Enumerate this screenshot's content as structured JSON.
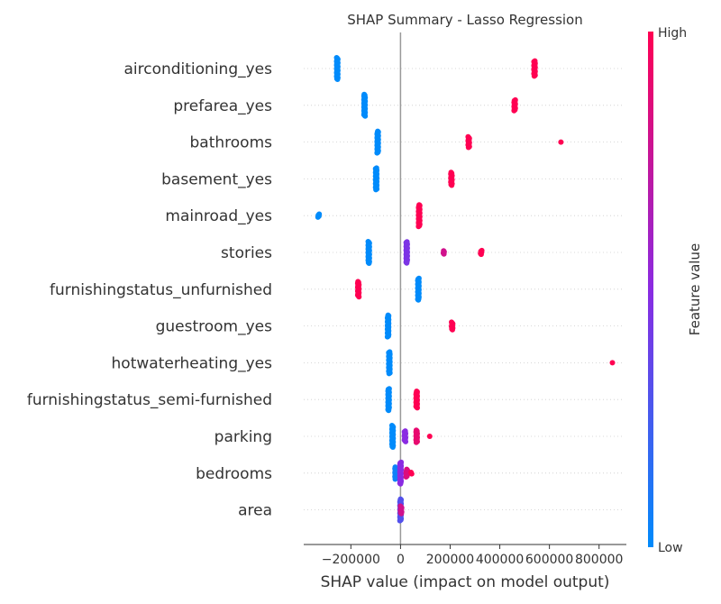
{
  "chart_data": {
    "type": "scatter",
    "title": "SHAP Summary - Lasso Regression",
    "xlabel": "SHAP value (impact on model output)",
    "xlim": [
      -390000,
      910000
    ],
    "xticks": [
      -200000,
      0,
      200000,
      400000,
      600000,
      800000
    ],
    "x_tick_labels": [
      "−200000",
      "0",
      "200000",
      "400000",
      "600000",
      "800000"
    ],
    "colorbar": {
      "label": "Feature value",
      "high": "High",
      "low": "Low"
    },
    "colors": {
      "low": "#008bfb",
      "mid": "#8a2be2",
      "high": "#ff0052",
      "zero_line": "#999999",
      "grid": "#cccccc"
    },
    "features": [
      {
        "name": "airconditioning_yes",
        "points": [
          {
            "x": -255000,
            "color": 0,
            "count": 30
          },
          {
            "x": 540000,
            "color": 1,
            "count": 20
          }
        ]
      },
      {
        "name": "prefarea_yes",
        "points": [
          {
            "x": -145000,
            "color": 0,
            "count": 30
          },
          {
            "x": 460000,
            "color": 1,
            "count": 14
          }
        ]
      },
      {
        "name": "bathrooms",
        "points": [
          {
            "x": -92000,
            "color": 0,
            "count": 30
          },
          {
            "x": 275000,
            "color": 1,
            "count": 14
          },
          {
            "x": 645000,
            "color": 1,
            "count": 1
          }
        ]
      },
      {
        "name": "basement_yes",
        "points": [
          {
            "x": -98000,
            "color": 0,
            "count": 30
          },
          {
            "x": 205000,
            "color": 1,
            "count": 17
          }
        ]
      },
      {
        "name": "mainroad_yes",
        "points": [
          {
            "x": -330000,
            "color": 0,
            "count": 4
          },
          {
            "x": 75000,
            "color": 1,
            "count": 30
          }
        ]
      },
      {
        "name": "stories",
        "points": [
          {
            "x": -128000,
            "color": 0,
            "count": 30
          },
          {
            "x": 25000,
            "color": 0.45,
            "count": 28
          },
          {
            "x": 175000,
            "color": 0.8,
            "count": 4
          },
          {
            "x": 325000,
            "color": 1,
            "count": 5
          }
        ]
      },
      {
        "name": "furnishingstatus_unfurnished",
        "points": [
          {
            "x": -170000,
            "color": 1,
            "count": 20
          },
          {
            "x": 72000,
            "color": 0,
            "count": 30
          }
        ]
      },
      {
        "name": "guestroom_yes",
        "points": [
          {
            "x": -50000,
            "color": 0,
            "count": 30
          },
          {
            "x": 208000,
            "color": 1,
            "count": 10
          }
        ]
      },
      {
        "name": "hotwaterheating_yes",
        "points": [
          {
            "x": -45000,
            "color": 0,
            "count": 30
          },
          {
            "x": 855000,
            "color": 1,
            "count": 1
          }
        ]
      },
      {
        "name": "furnishingstatus_semi-furnished",
        "points": [
          {
            "x": -48000,
            "color": 0,
            "count": 30
          },
          {
            "x": 65000,
            "color": 1,
            "count": 22
          }
        ]
      },
      {
        "name": "parking",
        "points": [
          {
            "x": -32000,
            "color": 0,
            "count": 30
          },
          {
            "x": 18000,
            "color": 0.5,
            "count": 14
          },
          {
            "x": 65000,
            "color": 0.9,
            "count": 16
          },
          {
            "x": 115000,
            "color": 1,
            "count": 1
          }
        ]
      },
      {
        "name": "bedrooms",
        "points": [
          {
            "x": -20000,
            "color": 0.05,
            "count": 16
          },
          {
            "x": 0,
            "color": 0.5,
            "count": 30
          },
          {
            "x": 25000,
            "color": 0.85,
            "count": 10
          },
          {
            "x": 45000,
            "color": 1,
            "count": 2
          }
        ]
      },
      {
        "name": "area",
        "points": [
          {
            "x": 0,
            "color": 0.3,
            "count": 30
          },
          {
            "x": 2000,
            "color": 0.8,
            "count": 10
          }
        ]
      }
    ]
  }
}
